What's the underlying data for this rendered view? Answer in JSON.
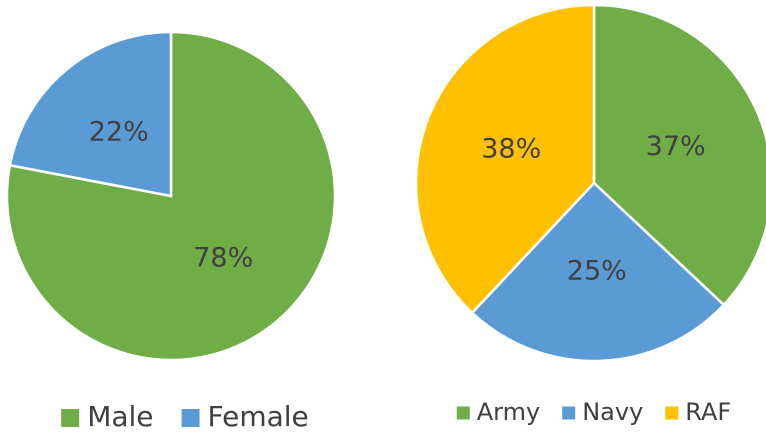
{
  "chart_data": [
    {
      "type": "pie",
      "categories": [
        "Male",
        "Female"
      ],
      "values": [
        78,
        22
      ],
      "value_labels": [
        "78%",
        "22%"
      ],
      "colors": [
        "#70ad47",
        "#5b9bd5"
      ],
      "legend": "bottom"
    },
    {
      "type": "pie",
      "categories": [
        "Army",
        "Navy",
        "RAF"
      ],
      "values": [
        37,
        25,
        38
      ],
      "value_labels": [
        "37%",
        "25%",
        "38%"
      ],
      "colors": [
        "#70ad47",
        "#5b9bd5",
        "#ffc000"
      ],
      "legend": "bottom"
    }
  ]
}
